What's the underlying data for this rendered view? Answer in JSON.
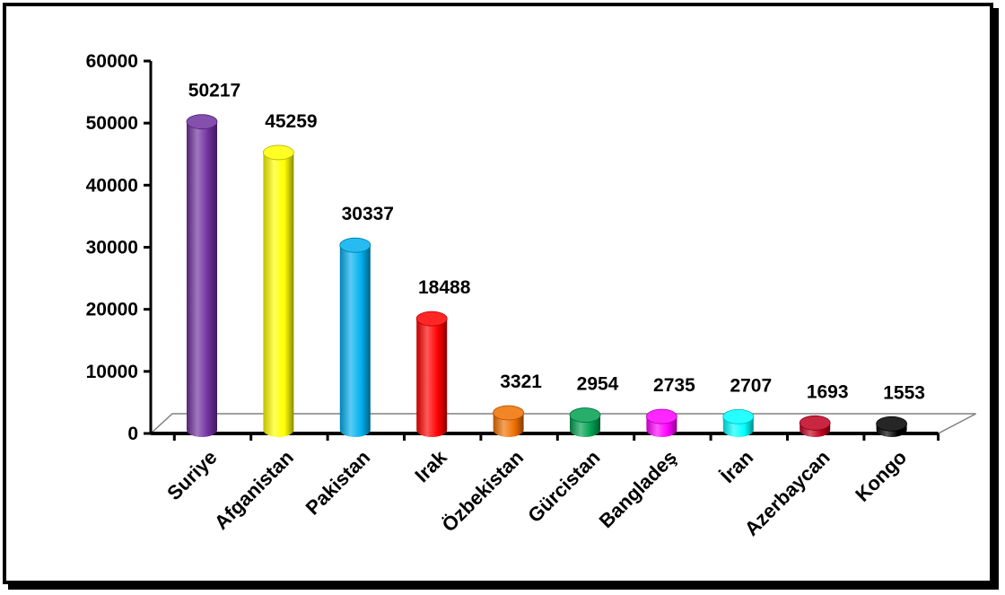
{
  "chart_data": {
    "type": "bar",
    "title": "",
    "xlabel": "",
    "ylabel": "",
    "ylim": [
      0,
      60000
    ],
    "yticks": [
      0,
      10000,
      20000,
      30000,
      40000,
      50000,
      60000
    ],
    "ytick_labels": [
      "0",
      "10000",
      "20000",
      "30000",
      "40000",
      "50000",
      "60000"
    ],
    "categories": [
      "Suriye",
      "Afganistan",
      "Pakistan",
      "Irak",
      "Özbekistan",
      "Gürcistan",
      "Bangladeş",
      "İran",
      "Azerbaycan",
      "Kongo"
    ],
    "values": [
      50217,
      45259,
      30337,
      18488,
      3321,
      2954,
      2735,
      2707,
      1693,
      1553
    ],
    "data_labels": [
      "50217",
      "45259",
      "30337",
      "18488",
      "3321",
      "2954",
      "2735",
      "2707",
      "1693",
      "1553"
    ],
    "colors": [
      "#7030a0",
      "#ffff00",
      "#00b0f0",
      "#ff0000",
      "#f07000",
      "#00a050",
      "#ff00ff",
      "#00ffff",
      "#c00020",
      "#000000"
    ],
    "grid": false,
    "legend": "none",
    "style": "3d-cylinder"
  }
}
